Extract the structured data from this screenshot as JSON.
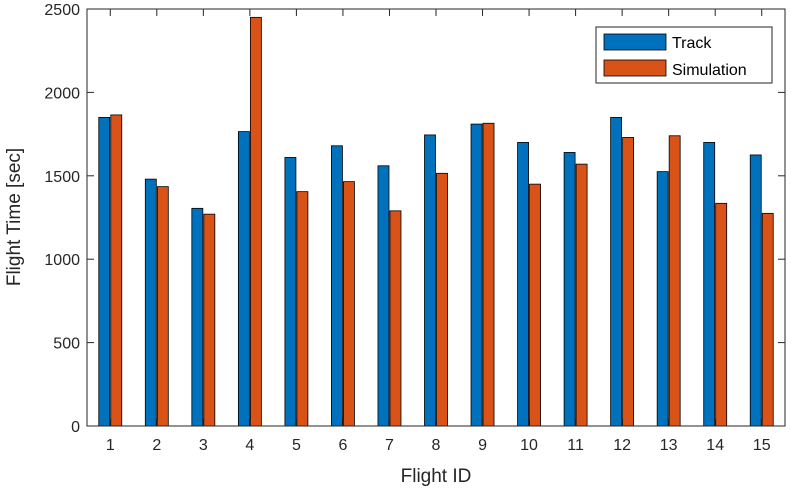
{
  "chart_data": {
    "type": "bar",
    "xlabel": "Flight ID",
    "ylabel": "Flight Time [sec]",
    "ylim": [
      0,
      2500
    ],
    "yticks": [
      0,
      500,
      1000,
      1500,
      2000,
      2500
    ],
    "categories": [
      "1",
      "2",
      "3",
      "4",
      "5",
      "6",
      "7",
      "8",
      "9",
      "10",
      "11",
      "12",
      "13",
      "14",
      "15"
    ],
    "series": [
      {
        "name": "Track",
        "color": "#0072BD",
        "values": [
          1850,
          1480,
          1305,
          1765,
          1610,
          1680,
          1560,
          1745,
          1810,
          1700,
          1640,
          1850,
          1525,
          1700,
          1625
        ]
      },
      {
        "name": "Simulation",
        "color": "#D95319",
        "values": [
          1865,
          1435,
          1270,
          2450,
          1405,
          1465,
          1290,
          1515,
          1815,
          1450,
          1570,
          1730,
          1740,
          1335,
          1275
        ]
      }
    ],
    "legend_position": "top-right",
    "grid": false
  }
}
